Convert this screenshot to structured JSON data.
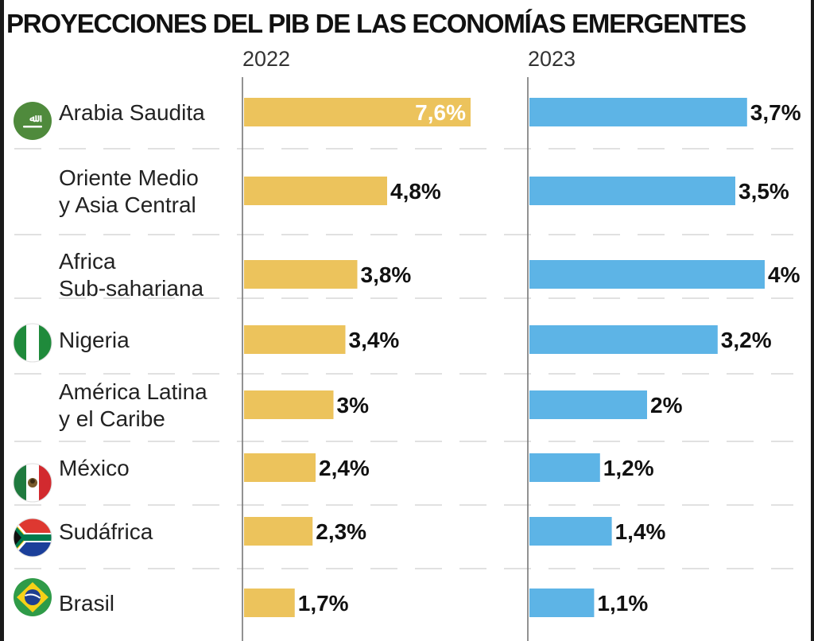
{
  "title": "PROYECCIONES DEL PIB DE LAS ECONOMÍAS EMERGENTES",
  "colors": {
    "bar_2022": "#ecc35c",
    "bar_2023": "#5db4e6",
    "separator": "#cfcfcf",
    "axis": "#777777"
  },
  "chart_data": {
    "type": "bar",
    "orientation": "horizontal",
    "title": "PROYECCIONES DEL PIB DE LAS ECONOMÍAS EMERGENTES",
    "categories": [
      "Arabia Saudita",
      "Oriente Medio y Asia Central",
      "Africa Sub-sahariana",
      "Nigeria",
      "América Latina y el Caribe",
      "México",
      "Sudáfrica",
      "Brasil"
    ],
    "category_lines": [
      [
        "Arabia Saudita"
      ],
      [
        "Oriente Medio",
        "y Asia Central"
      ],
      [
        "Africa",
        "Sub-sahariana"
      ],
      [
        "Nigeria"
      ],
      [
        "América Latina",
        "y el Caribe"
      ],
      [
        "México"
      ],
      [
        "Sudáfrica"
      ],
      [
        "Brasil"
      ]
    ],
    "category_icons": [
      "saudi-arabia-flag-icon",
      null,
      null,
      "nigeria-flag-icon",
      null,
      "mexico-flag-icon",
      "south-africa-flag-icon",
      "brazil-flag-icon"
    ],
    "series": [
      {
        "name": "2022",
        "values": [
          7.6,
          4.8,
          3.8,
          3.4,
          3.0,
          2.4,
          2.3,
          1.7
        ],
        "labels": [
          "7,6%",
          "4,8%",
          "3,8%",
          "3,4%",
          "3%",
          "2,4%",
          "2,3%",
          "1,7%"
        ]
      },
      {
        "name": "2023",
        "values": [
          3.7,
          3.5,
          4.0,
          3.2,
          2.0,
          1.2,
          1.4,
          1.1
        ],
        "labels": [
          "3,7%",
          "3,5%",
          "4%",
          "3,2%",
          "2%",
          "1,2%",
          "1,4%",
          "1,1%"
        ]
      }
    ],
    "grid": false,
    "legend": "none"
  }
}
